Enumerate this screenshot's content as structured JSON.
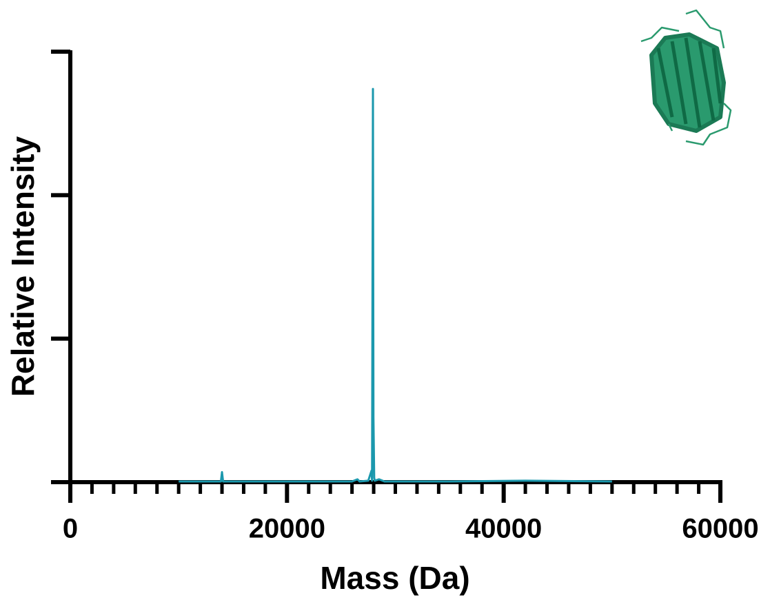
{
  "chart_data": {
    "type": "line",
    "x_label": "Mass (Da)",
    "y_label": "Relative Intensity",
    "x": [
      10000,
      13900,
      14000,
      14100,
      20000,
      26000,
      26500,
      26700,
      27500,
      27800,
      27850,
      27933,
      27980,
      28050,
      28100,
      28500,
      29000,
      35000,
      42000,
      50000
    ],
    "values": [
      0.005,
      0.005,
      0.07,
      0.005,
      0.005,
      0.005,
      0.02,
      0.005,
      0.01,
      0.08,
      0.01,
      2.74,
      0.45,
      0.03,
      0.01,
      0.02,
      0.005,
      0.005,
      0.01,
      0.005
    ],
    "color": "#1b98ad",
    "xlim": [
      0,
      60000
    ],
    "xticks": [
      0,
      20000,
      40000,
      60000
    ],
    "xminor": [
      2000,
      4000,
      6000,
      8000,
      10000,
      12000,
      14000,
      16000,
      18000,
      22000,
      24000,
      26000,
      28000,
      30000,
      32000,
      34000,
      36000,
      38000,
      42000,
      44000,
      46000,
      48000,
      50000,
      52000,
      54000,
      56000,
      58000
    ],
    "ylim": [
      0,
      3
    ],
    "yticks": [
      0,
      1,
      2,
      3
    ]
  }
}
